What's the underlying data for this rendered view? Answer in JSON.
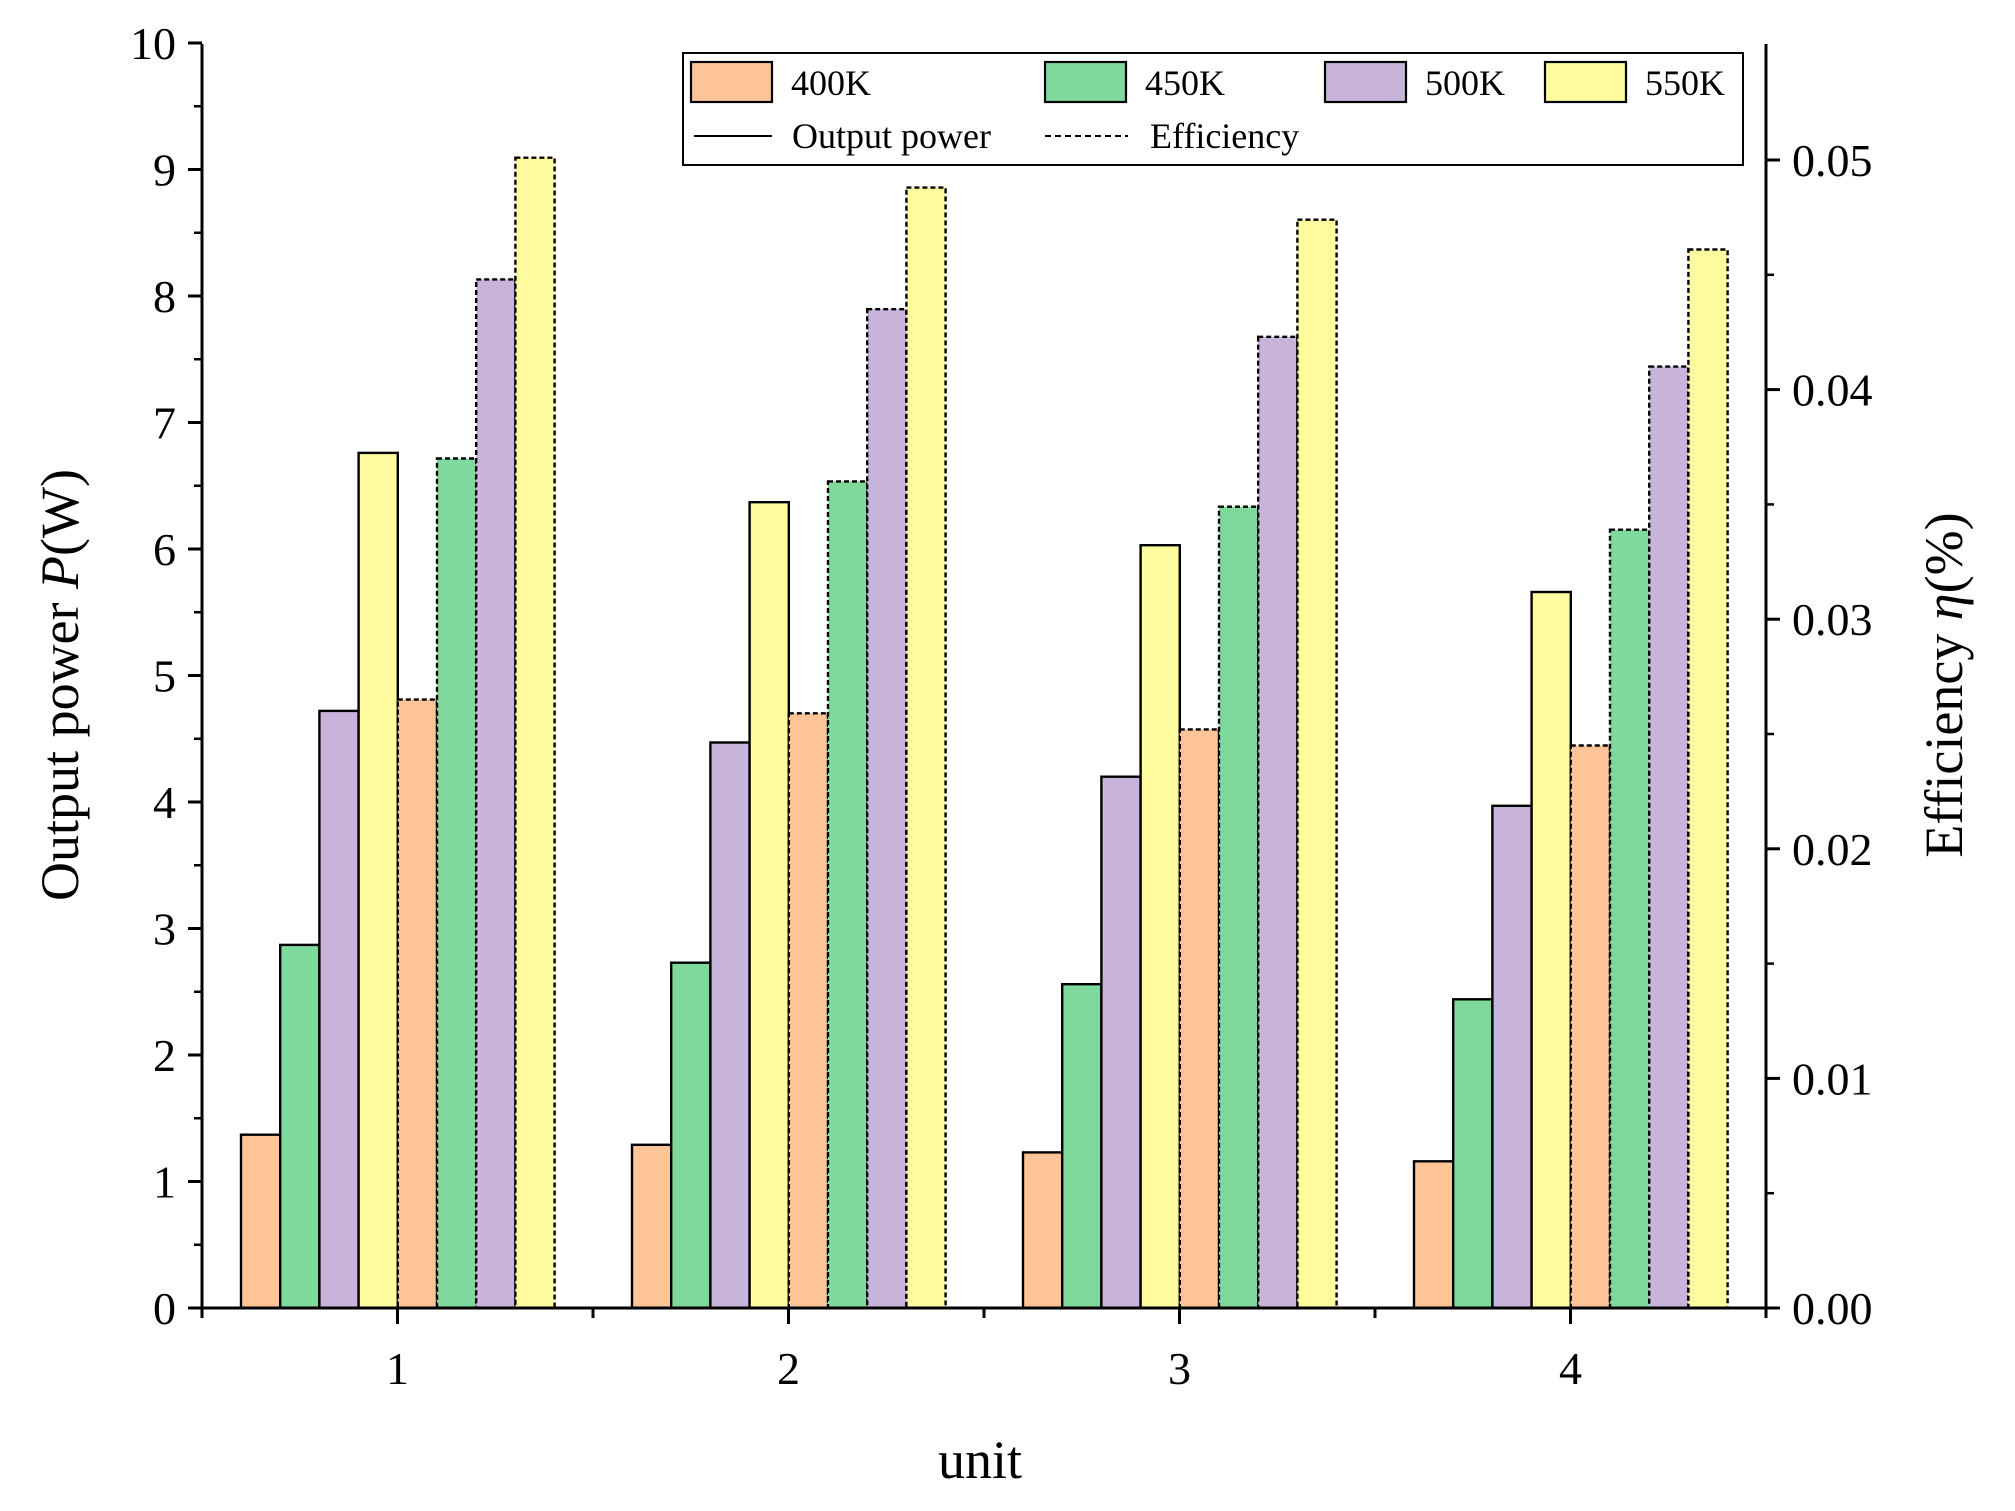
{
  "chart_data": {
    "type": "bar",
    "xlabel": "unit",
    "ylabel_left": {
      "main": "Output power ",
      "symbol": "P",
      "unit": "(W)"
    },
    "ylabel_right": {
      "main": "Efficiency ",
      "symbol": "η",
      "unit": "(%)"
    },
    "categories": [
      "1",
      "2",
      "3",
      "4"
    ],
    "left_axis": {
      "min": 0,
      "max": 10,
      "ticks": [
        "0",
        "1",
        "2",
        "3",
        "4",
        "5",
        "6",
        "7",
        "8",
        "9",
        "10"
      ]
    },
    "right_axis": {
      "min": 0.0,
      "max": 0.055,
      "ticks": [
        "0.00",
        "0.01",
        "0.02",
        "0.03",
        "0.04",
        "0.05"
      ]
    },
    "temperatures": [
      "400K",
      "450K",
      "500K",
      "550K"
    ],
    "colors": {
      "400K": "#FDC597",
      "450K": "#7FD99C",
      "500K": "#C8B3DA",
      "550K": "#FEFC9E"
    },
    "series": [
      {
        "name": "400K",
        "measure": "Output power",
        "axis": "left",
        "values": [
          1.37,
          1.29,
          1.23,
          1.16
        ]
      },
      {
        "name": "450K",
        "measure": "Output power",
        "axis": "left",
        "values": [
          2.87,
          2.73,
          2.56,
          2.44
        ]
      },
      {
        "name": "500K",
        "measure": "Output power",
        "axis": "left",
        "values": [
          4.72,
          4.47,
          4.2,
          3.97
        ]
      },
      {
        "name": "550K",
        "measure": "Output power",
        "axis": "left",
        "values": [
          6.76,
          6.37,
          6.03,
          5.66
        ]
      },
      {
        "name": "400K",
        "measure": "Efficiency",
        "axis": "right",
        "values": [
          0.0265,
          0.0259,
          0.0252,
          0.0245
        ]
      },
      {
        "name": "450K",
        "measure": "Efficiency",
        "axis": "right",
        "values": [
          0.037,
          0.036,
          0.0349,
          0.0339
        ]
      },
      {
        "name": "500K",
        "measure": "Efficiency",
        "axis": "right",
        "values": [
          0.0448,
          0.0435,
          0.0423,
          0.041
        ]
      },
      {
        "name": "550K",
        "measure": "Efficiency",
        "axis": "right",
        "values": [
          0.0501,
          0.0488,
          0.0474,
          0.0461
        ]
      }
    ],
    "legend": {
      "position": "top-right",
      "entries": [
        "400K",
        "450K",
        "500K",
        "550K"
      ],
      "line_entries": [
        {
          "label": "Output power",
          "style": "solid"
        },
        {
          "label": "Efficiency",
          "style": "dashed"
        }
      ]
    },
    "grid": false
  }
}
